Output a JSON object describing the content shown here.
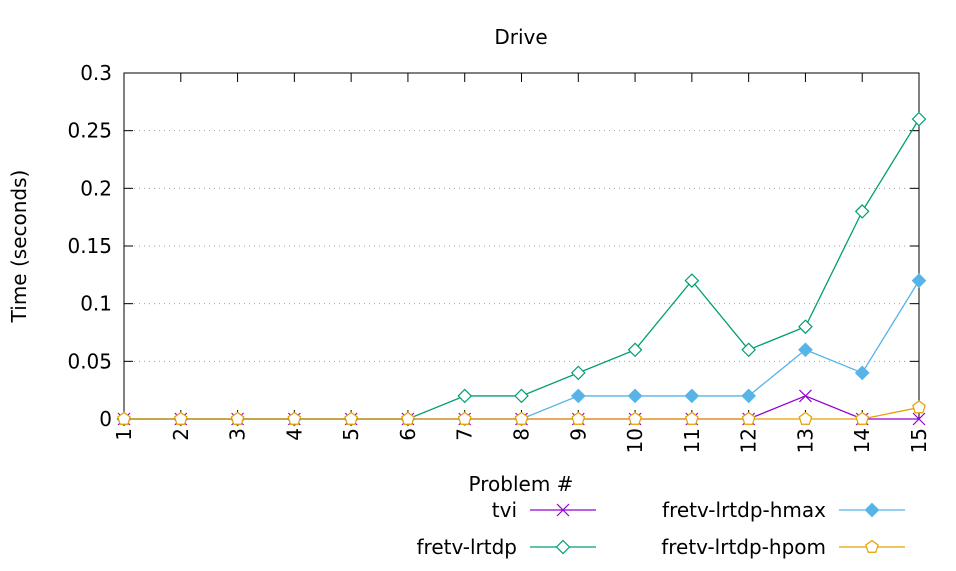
{
  "chart_data": {
    "type": "line",
    "title": "Drive",
    "xlabel": "Problem #",
    "ylabel": "Time (seconds)",
    "categories": [
      "1",
      "2",
      "3",
      "4",
      "5",
      "6",
      "7",
      "8",
      "9",
      "10",
      "11",
      "12",
      "13",
      "14",
      "15"
    ],
    "ylim": [
      0,
      0.3
    ],
    "yticks": [
      "0",
      "0.05",
      "0.1",
      "0.15",
      "0.2",
      "0.25",
      "0.3"
    ],
    "ytick_values": [
      0,
      0.05,
      0.1,
      0.15,
      0.2,
      0.25,
      0.3
    ],
    "grid": "horizontal",
    "legend_position": "bottom",
    "series": [
      {
        "name": "tvi",
        "color": "#9400d3",
        "marker": "cross",
        "values": [
          0,
          0,
          0,
          0,
          0,
          0,
          0,
          0,
          0,
          0,
          0,
          0,
          0.02,
          0,
          0
        ]
      },
      {
        "name": "fretv-lrtdp-hmax",
        "color": "#56b4e9",
        "marker": "diamond-filled",
        "values": [
          0,
          0,
          0,
          0,
          0,
          0,
          0,
          0,
          0.02,
          0.02,
          0.02,
          0.02,
          0.06,
          0.04,
          0.12
        ]
      },
      {
        "name": "fretv-lrtdp",
        "color": "#009e73",
        "marker": "diamond-open",
        "values": [
          0,
          0,
          0,
          0,
          0,
          0,
          0.02,
          0.02,
          0.04,
          0.06,
          0.12,
          0.06,
          0.08,
          0.18,
          0.26
        ]
      },
      {
        "name": "fretv-lrtdp-hpom",
        "color": "#e69f00",
        "marker": "pentagon-open",
        "values": [
          0,
          0,
          0,
          0,
          0,
          0,
          0,
          0,
          0,
          0,
          0,
          0,
          0,
          0,
          0.01
        ]
      }
    ]
  }
}
